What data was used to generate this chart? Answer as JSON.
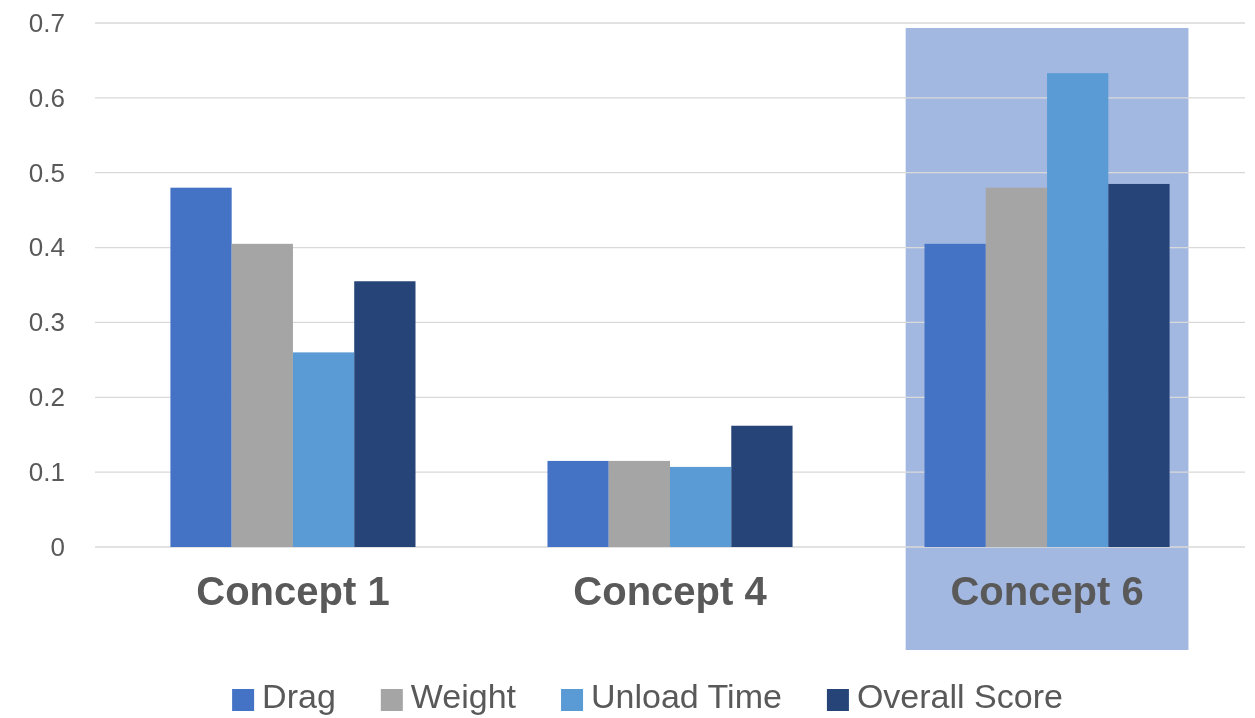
{
  "chart_data": {
    "type": "bar",
    "categories": [
      "Concept 1",
      "Concept 4",
      "Concept 6"
    ],
    "series": [
      {
        "name": "Drag",
        "color": "#4472c4",
        "values": [
          0.48,
          0.115,
          0.405
        ]
      },
      {
        "name": "Weight",
        "color": "#a5a5a5",
        "values": [
          0.405,
          0.115,
          0.48
        ]
      },
      {
        "name": "Unload Time",
        "color": "#5b9bd5",
        "values": [
          0.26,
          0.107,
          0.633
        ]
      },
      {
        "name": "Overall Score",
        "color": "#264478",
        "values": [
          0.355,
          0.162,
          0.485
        ]
      }
    ],
    "ylim": [
      0,
      0.7
    ],
    "yticks": [
      0,
      0.1,
      0.2,
      0.3,
      0.4,
      0.5,
      0.6,
      0.7
    ],
    "grid": "y",
    "legend": "bottom",
    "bands": [
      {
        "axis": "x",
        "from": "Concept 6",
        "to": "Concept 6",
        "color": "#a3b8e0"
      }
    ]
  }
}
